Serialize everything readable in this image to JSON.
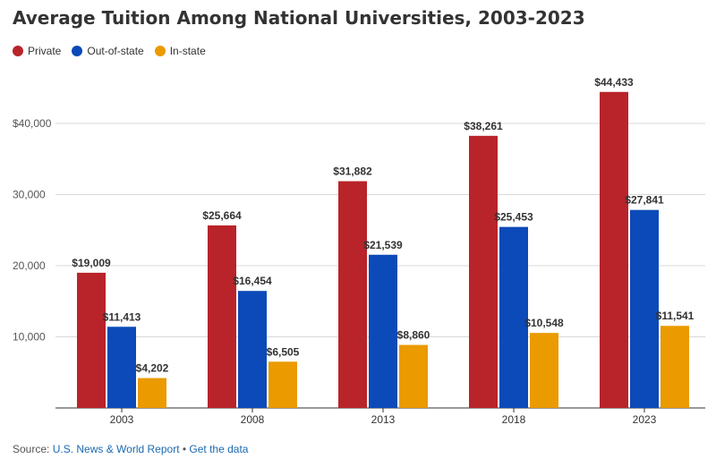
{
  "title": "Average Tuition Among National Universities, 2003-2023",
  "legend": [
    {
      "name": "Private",
      "color": "#b8242a"
    },
    {
      "name": "Out-of-state",
      "color": "#0b4ab8"
    },
    {
      "name": "In-state",
      "color": "#eb9a00"
    }
  ],
  "source": {
    "prefix": "Source: ",
    "publisher": "U.S. News & World Report",
    "separator": " • ",
    "data_link": "Get the data"
  },
  "chart_data": {
    "type": "bar",
    "title": "Average Tuition Among National Universities, 2003-2023",
    "xlabel": "",
    "ylabel": "",
    "categories": [
      "2003",
      "2008",
      "2013",
      "2018",
      "2023"
    ],
    "ylim": [
      0,
      52000
    ],
    "yticks": [
      10000,
      20000,
      30000,
      40000
    ],
    "ytick_labels": [
      "10,000",
      "20,000",
      "30,000",
      "$40,000"
    ],
    "grid": true,
    "legend_position": "top-left",
    "series": [
      {
        "name": "Private",
        "color": "#b8242a",
        "values": [
          19009,
          25664,
          31882,
          38261,
          44433
        ],
        "labels": [
          "$19,009",
          "$25,664",
          "$31,882",
          "$38,261",
          "$44,433"
        ]
      },
      {
        "name": "Out-of-state",
        "color": "#0b4ab8",
        "values": [
          11413,
          16454,
          21539,
          25453,
          27841
        ],
        "labels": [
          "$11,413",
          "$16,454",
          "$21,539",
          "$25,453",
          "$27,841"
        ]
      },
      {
        "name": "In-state",
        "color": "#eb9a00",
        "values": [
          4202,
          6505,
          8860,
          10548,
          11541
        ],
        "labels": [
          "$4,202",
          "$6,505",
          "$8,860",
          "$10,548",
          "$11,541"
        ]
      }
    ]
  }
}
